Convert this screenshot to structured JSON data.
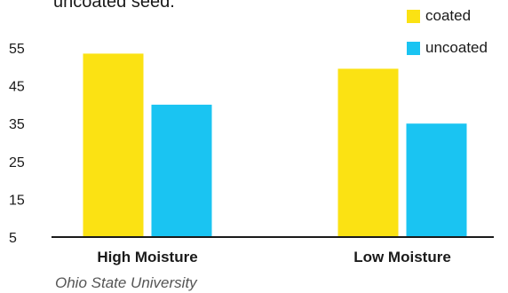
{
  "header": {
    "partial_text": "uncoated seed."
  },
  "source": "Ohio State University",
  "colors": {
    "coated": "#FBE213",
    "uncoated": "#1AC4F2",
    "axis": "#1a1a1a"
  },
  "chart_data": {
    "type": "bar",
    "title": "",
    "xlabel": "",
    "ylabel": "",
    "categories": [
      "High Moisture",
      "Low Moisture"
    ],
    "series": [
      {
        "name": "coated",
        "values": [
          53.5,
          49.5
        ]
      },
      {
        "name": "uncoated",
        "values": [
          40,
          35
        ]
      }
    ],
    "yticks": [
      5,
      15,
      25,
      35,
      45,
      55
    ],
    "ylim": [
      5,
      55
    ],
    "grid": false,
    "legend": "top-right"
  }
}
